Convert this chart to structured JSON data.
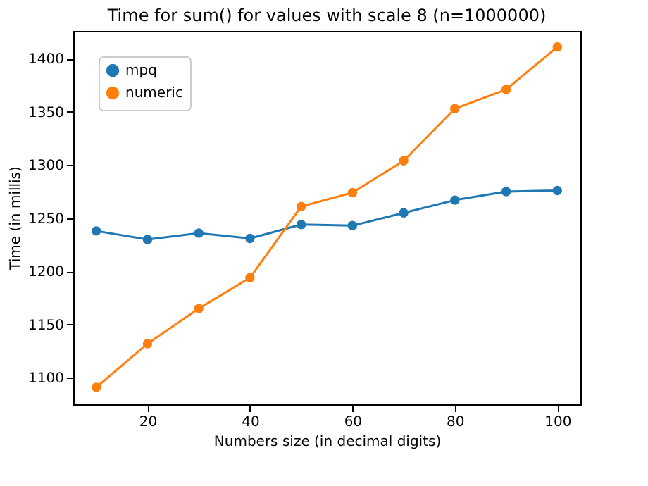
{
  "chart_data": {
    "type": "line",
    "title": "Time for sum() for values with scale 8 (n=1000000)",
    "xlabel": "Numbers size (in decimal digits)",
    "ylabel": "Time (in millis)",
    "x": [
      10,
      20,
      30,
      40,
      50,
      60,
      70,
      80,
      90,
      100
    ],
    "series": [
      {
        "name": "mpq",
        "color": "#1f77b4",
        "values": [
          1238,
          1230,
          1236,
          1231,
          1244,
          1243,
          1255,
          1267,
          1275,
          1276
        ]
      },
      {
        "name": "numeric",
        "color": "#ff7f0e",
        "values": [
          1091,
          1132,
          1165,
          1194,
          1261,
          1274,
          1304,
          1353,
          1371,
          1411
        ]
      }
    ],
    "xlim": [
      5.5,
      104.5
    ],
    "ylim": [
      1075,
      1426
    ],
    "xticks": [
      20,
      40,
      60,
      80,
      100
    ],
    "yticks": [
      1100,
      1150,
      1200,
      1250,
      1300,
      1350,
      1400
    ],
    "legend": "top left",
    "marker": "circle",
    "grid": false
  }
}
